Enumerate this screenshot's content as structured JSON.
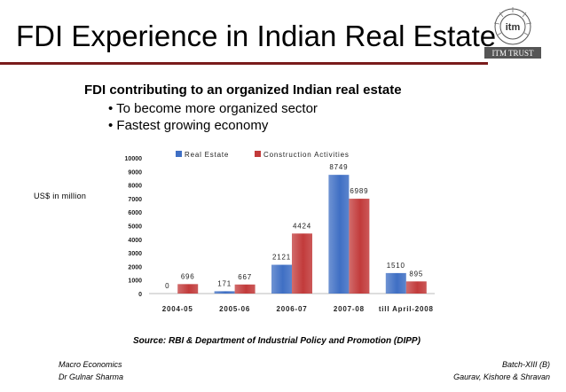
{
  "slide": {
    "title": "FDI Experience in Indian Real Estate",
    "subtitle": "FDI contributing to an organized Indian real estate",
    "bullets": [
      "• To become more organized sector",
      "• Fastest growing economy"
    ],
    "y_unit_label": "US$ in million",
    "source": "Source: RBI & Department of Industrial Policy and Promotion (DIPP)",
    "footer_left": [
      "Macro Economics",
      "Dr  Gulnar Sharma"
    ],
    "footer_right": [
      "Batch-XIII (B)",
      "Gaurav, Kishore & Shravan"
    ],
    "logo_text": "ITM TRUST",
    "logo_mark": "itm"
  },
  "colors": {
    "real_estate": "#3f6fc4",
    "construction": "#c23b3b",
    "title_rule": "#7a1c1c"
  },
  "chart_data": {
    "type": "bar",
    "title": "",
    "xlabel": "",
    "ylabel": "US$ in million",
    "categories": [
      "2004-05",
      "2005-06",
      "2006-07",
      "2007-08",
      "till April-2008"
    ],
    "series": [
      {
        "name": "Real Estate",
        "values": [
          0,
          171,
          2121,
          8749,
          1510
        ]
      },
      {
        "name": "Construction Activities",
        "values": [
          696,
          667,
          4424,
          6989,
          895
        ]
      }
    ],
    "ylim": [
      0,
      10000
    ],
    "yticks": [
      0,
      1000,
      2000,
      3000,
      4000,
      5000,
      6000,
      7000,
      8000,
      9000,
      10000
    ],
    "legend": "top",
    "grid": false
  }
}
